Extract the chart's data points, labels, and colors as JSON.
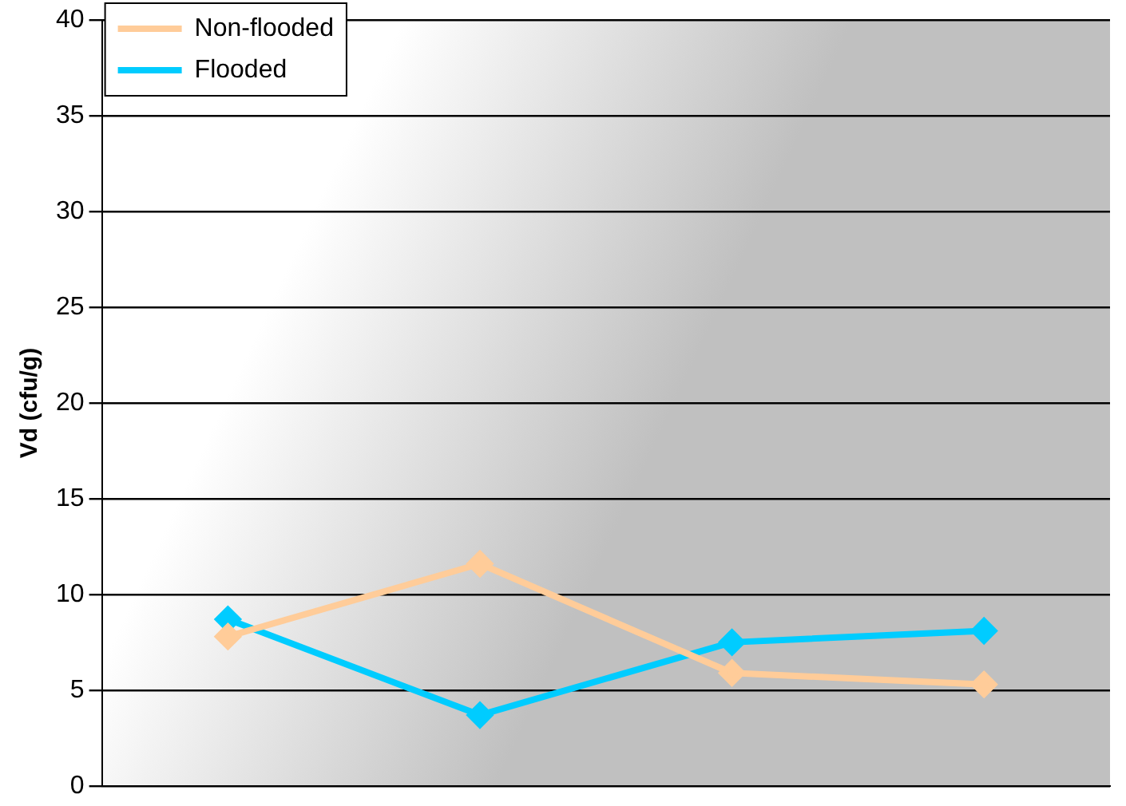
{
  "chart_data": {
    "type": "line",
    "ylabel": "Vd (cfu/g)",
    "categories": [
      null,
      null,
      null,
      null
    ],
    "series": [
      {
        "name": "Non-flooded",
        "color": "#ffcc99",
        "values": [
          7.8,
          11.6,
          5.9,
          5.3
        ]
      },
      {
        "name": "Flooded",
        "color": "#00ccff",
        "values": [
          8.7,
          3.7,
          7.5,
          8.1
        ]
      }
    ],
    "ylim": [
      0,
      40
    ],
    "yticks": [
      0,
      5,
      10,
      15,
      20,
      25,
      30,
      35,
      40
    ],
    "grid": "y",
    "legend": "top left",
    "marker": "diamond",
    "line_style": "solid",
    "tick_labels": "y"
  }
}
